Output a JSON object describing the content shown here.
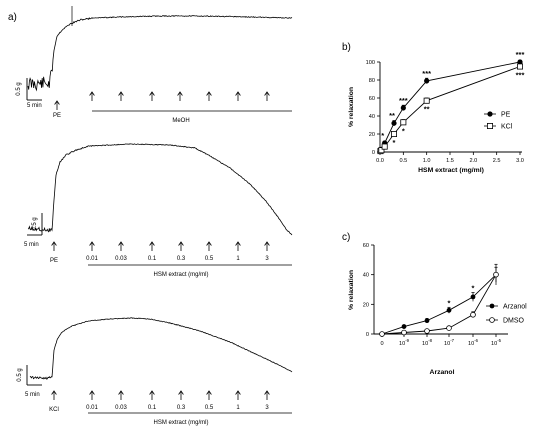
{
  "panels": {
    "a": {
      "label": "a)",
      "traces": [
        {
          "scale_y": "0.5 g",
          "scale_x": "5 min",
          "agent": "PE",
          "treatment": "MeOH",
          "dose_labels": []
        },
        {
          "scale_y": "0.5 g",
          "scale_x": "5 min",
          "agent": "PE",
          "treatment": "HSM extract (mg/ml)",
          "dose_labels": [
            "0.01",
            "0.03",
            "0.1",
            "0.3",
            "0.5",
            "1",
            "3"
          ]
        },
        {
          "scale_y": "0.5 g",
          "scale_x": "5 min",
          "agent": "KCl",
          "treatment": "HSM extract (mg/ml)",
          "dose_labels": [
            "0.01",
            "0.03",
            "0.1",
            "0.3",
            "0.5",
            "1",
            "3"
          ]
        }
      ]
    },
    "b": {
      "label": "b)"
    },
    "c": {
      "label": "c)"
    }
  },
  "chart_data": [
    {
      "panel": "b)",
      "type": "line",
      "xlabel": "HSM extract  (mg/ml)",
      "ylabel": "% relaxation",
      "xlim": [
        0,
        3.0
      ],
      "ylim": [
        0,
        100
      ],
      "x_ticks": [
        "0.0",
        "0.5",
        "1.0",
        "1.5",
        "2.0",
        "2.5",
        "3.0"
      ],
      "y_ticks": [
        "0",
        "20",
        "40",
        "60",
        "80",
        "100"
      ],
      "legend_position": "right",
      "series": [
        {
          "name": "PE",
          "marker": "filled-circle",
          "x": [
            0.01,
            0.03,
            0.1,
            0.3,
            0.5,
            1.0,
            3.0
          ],
          "y": [
            1,
            3,
            10,
            32,
            49,
            79,
            100
          ],
          "err": [
            1,
            1,
            2,
            3,
            3,
            3,
            2
          ],
          "annotations": [
            "",
            "",
            "*",
            "**",
            "***",
            "***",
            "***"
          ]
        },
        {
          "name": "KCl",
          "marker": "open-square",
          "x": [
            0.01,
            0.03,
            0.1,
            0.3,
            0.5,
            1.0,
            3.0
          ],
          "y": [
            1,
            2,
            6,
            20,
            33,
            57,
            95
          ],
          "err": [
            1,
            1,
            1,
            2,
            3,
            3,
            3
          ],
          "annotations": [
            "",
            "",
            "",
            "*",
            "*",
            "**",
            "***"
          ]
        }
      ]
    },
    {
      "panel": "c)",
      "type": "line",
      "xlabel": "Arzanol",
      "ylabel": "% relaxation",
      "ylim": [
        0,
        60
      ],
      "x_ticks": [
        "0",
        "10-9",
        "10-8",
        "10-7",
        "10-6",
        "10-5"
      ],
      "y_ticks": [
        "0",
        "20",
        "40",
        "60"
      ],
      "legend_position": "right",
      "series": [
        {
          "name": "Arzanol",
          "marker": "filled-circle",
          "x": [
            "0",
            "10-9",
            "10-8",
            "10-7",
            "10-6",
            "10-5"
          ],
          "y": [
            0,
            5,
            9,
            16,
            25,
            40
          ],
          "err": [
            0,
            1,
            1.5,
            2,
            3,
            7
          ],
          "annotations": [
            "",
            "",
            "",
            "*",
            "*",
            ""
          ]
        },
        {
          "name": "DMSO",
          "marker": "open-circle",
          "x": [
            "0",
            "10-9",
            "10-8",
            "10-7",
            "10-6",
            "10-5"
          ],
          "y": [
            0,
            1,
            2,
            4,
            13,
            40
          ],
          "err": [
            0,
            0.5,
            1,
            1,
            2,
            5
          ],
          "annotations": [
            "",
            "",
            "",
            "",
            "",
            ""
          ]
        }
      ]
    }
  ]
}
